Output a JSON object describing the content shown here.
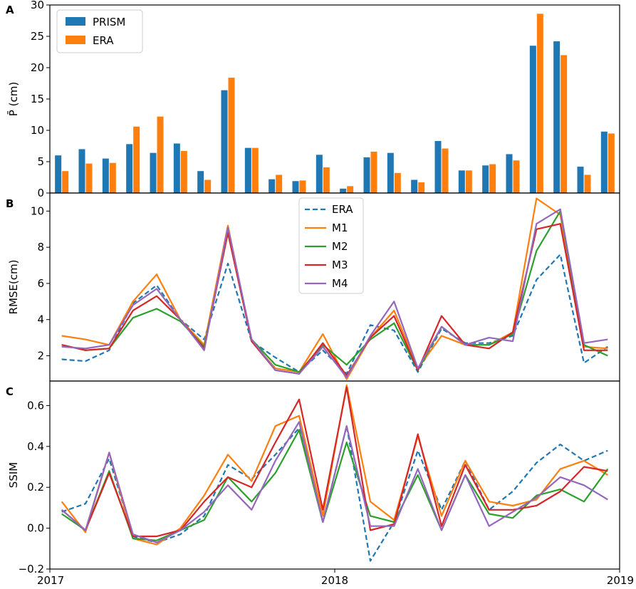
{
  "x_ticks": [
    "2017",
    "2018",
    "2019"
  ],
  "colors": {
    "PRISM": "#1f77b4",
    "ERA": "#ff7f0e",
    "ERA_line": "#1f77b4",
    "M1": "#ff7f0e",
    "M2": "#2ca02c",
    "M3": "#d62728",
    "M4": "#9467bd"
  },
  "chart_data": [
    {
      "panel": "A",
      "type": "bar",
      "ylabel": "P̄ (cm)",
      "ylim": [
        0,
        30
      ],
      "yticks": [
        0,
        5,
        10,
        15,
        20,
        25,
        30
      ],
      "legend_position": "top-left",
      "series": [
        {
          "name": "PRISM",
          "values": [
            6.0,
            7.0,
            5.5,
            7.8,
            6.4,
            7.9,
            3.5,
            16.4,
            7.2,
            2.2,
            1.9,
            6.1,
            0.7,
            5.7,
            6.4,
            2.1,
            8.3,
            3.6,
            4.4,
            6.2,
            23.5,
            24.2,
            4.2,
            9.8
          ]
        },
        {
          "name": "ERA",
          "values": [
            3.5,
            4.7,
            4.8,
            10.6,
            12.2,
            6.7,
            2.1,
            18.4,
            7.2,
            2.9,
            2.0,
            4.1,
            1.1,
            6.6,
            3.2,
            1.7,
            7.1,
            3.6,
            4.6,
            5.2,
            28.6,
            22.0,
            2.9,
            9.5
          ]
        }
      ]
    },
    {
      "panel": "B",
      "type": "line",
      "ylabel": "RMSE(cm)",
      "ylim": [
        0.6,
        11.0
      ],
      "yticks": [
        2,
        4,
        6,
        8,
        10
      ],
      "legend_position": "top-center",
      "series": [
        {
          "name": "ERA",
          "style": "dashed",
          "values": [
            1.8,
            1.7,
            2.3,
            4.9,
            5.9,
            4.0,
            2.9,
            7.1,
            2.8,
            1.9,
            1.1,
            2.3,
            1.0,
            3.7,
            3.4,
            1.1,
            3.5,
            2.7,
            2.7,
            3.1,
            6.2,
            7.6,
            1.6,
            2.5
          ]
        },
        {
          "name": "M1",
          "style": "solid",
          "values": [
            3.1,
            2.9,
            2.6,
            5.0,
            6.5,
            4.0,
            2.6,
            9.2,
            2.8,
            1.3,
            1.1,
            3.2,
            0.7,
            3.0,
            4.5,
            1.3,
            3.1,
            2.6,
            2.6,
            3.3,
            10.7,
            9.8,
            2.5,
            2.4
          ]
        },
        {
          "name": "M2",
          "style": "solid",
          "values": [
            2.6,
            2.3,
            2.4,
            4.1,
            4.6,
            3.9,
            2.5,
            8.8,
            2.9,
            1.5,
            1.1,
            2.6,
            1.5,
            2.9,
            3.8,
            1.2,
            3.6,
            2.6,
            2.6,
            3.2,
            7.8,
            10.0,
            2.6,
            2.0
          ]
        },
        {
          "name": "M3",
          "style": "solid",
          "values": [
            2.6,
            2.3,
            2.4,
            4.5,
            5.3,
            4.0,
            2.4,
            8.8,
            2.8,
            1.2,
            1.0,
            2.7,
            0.9,
            3.0,
            4.2,
            1.2,
            4.2,
            2.6,
            2.4,
            3.3,
            9.0,
            9.3,
            2.3,
            2.3
          ]
        },
        {
          "name": "M4",
          "style": "solid",
          "values": [
            2.5,
            2.4,
            2.6,
            4.8,
            5.7,
            4.0,
            2.3,
            9.1,
            2.9,
            1.2,
            1.0,
            2.5,
            0.8,
            3.1,
            5.0,
            1.3,
            3.6,
            2.6,
            3.0,
            2.8,
            9.3,
            10.1,
            2.7,
            2.9
          ]
        }
      ]
    },
    {
      "panel": "C",
      "type": "line",
      "ylabel": "SSIM",
      "ylim": [
        -0.2,
        0.72
      ],
      "yticks": [
        -0.2,
        0.0,
        0.2,
        0.4,
        0.6
      ],
      "series": [
        {
          "name": "ERA",
          "style": "dashed",
          "values": [
            0.08,
            0.12,
            0.34,
            -0.04,
            -0.07,
            -0.03,
            0.06,
            0.31,
            0.24,
            0.36,
            0.49,
            0.03,
            0.5,
            -0.16,
            0.03,
            0.38,
            0.09,
            0.33,
            0.09,
            0.18,
            0.32,
            0.41,
            0.33,
            0.38
          ]
        },
        {
          "name": "M1",
          "style": "solid",
          "values": [
            0.13,
            -0.02,
            0.37,
            -0.05,
            -0.08,
            0.0,
            0.16,
            0.36,
            0.23,
            0.5,
            0.55,
            0.06,
            0.7,
            0.13,
            0.04,
            0.45,
            0.06,
            0.33,
            0.13,
            0.11,
            0.14,
            0.29,
            0.33,
            0.26
          ]
        },
        {
          "name": "M2",
          "style": "solid",
          "values": [
            0.07,
            -0.01,
            0.28,
            -0.05,
            -0.06,
            -0.01,
            0.04,
            0.25,
            0.13,
            0.27,
            0.48,
            0.03,
            0.42,
            0.06,
            0.03,
            0.26,
            -0.01,
            0.26,
            0.07,
            0.05,
            0.16,
            0.19,
            0.13,
            0.29
          ]
        },
        {
          "name": "M3",
          "style": "solid",
          "values": [
            0.09,
            -0.01,
            0.27,
            -0.04,
            -0.04,
            -0.01,
            0.13,
            0.25,
            0.2,
            0.42,
            0.63,
            0.09,
            0.69,
            -0.01,
            0.02,
            0.46,
            0.01,
            0.31,
            0.09,
            0.09,
            0.11,
            0.18,
            0.3,
            0.28
          ]
        },
        {
          "name": "M4",
          "style": "solid",
          "values": [
            0.09,
            -0.01,
            0.37,
            -0.03,
            -0.07,
            -0.01,
            0.08,
            0.21,
            0.09,
            0.33,
            0.52,
            0.03,
            0.5,
            0.01,
            0.01,
            0.29,
            -0.01,
            0.26,
            0.01,
            0.08,
            0.15,
            0.25,
            0.21,
            0.14
          ]
        }
      ]
    }
  ]
}
